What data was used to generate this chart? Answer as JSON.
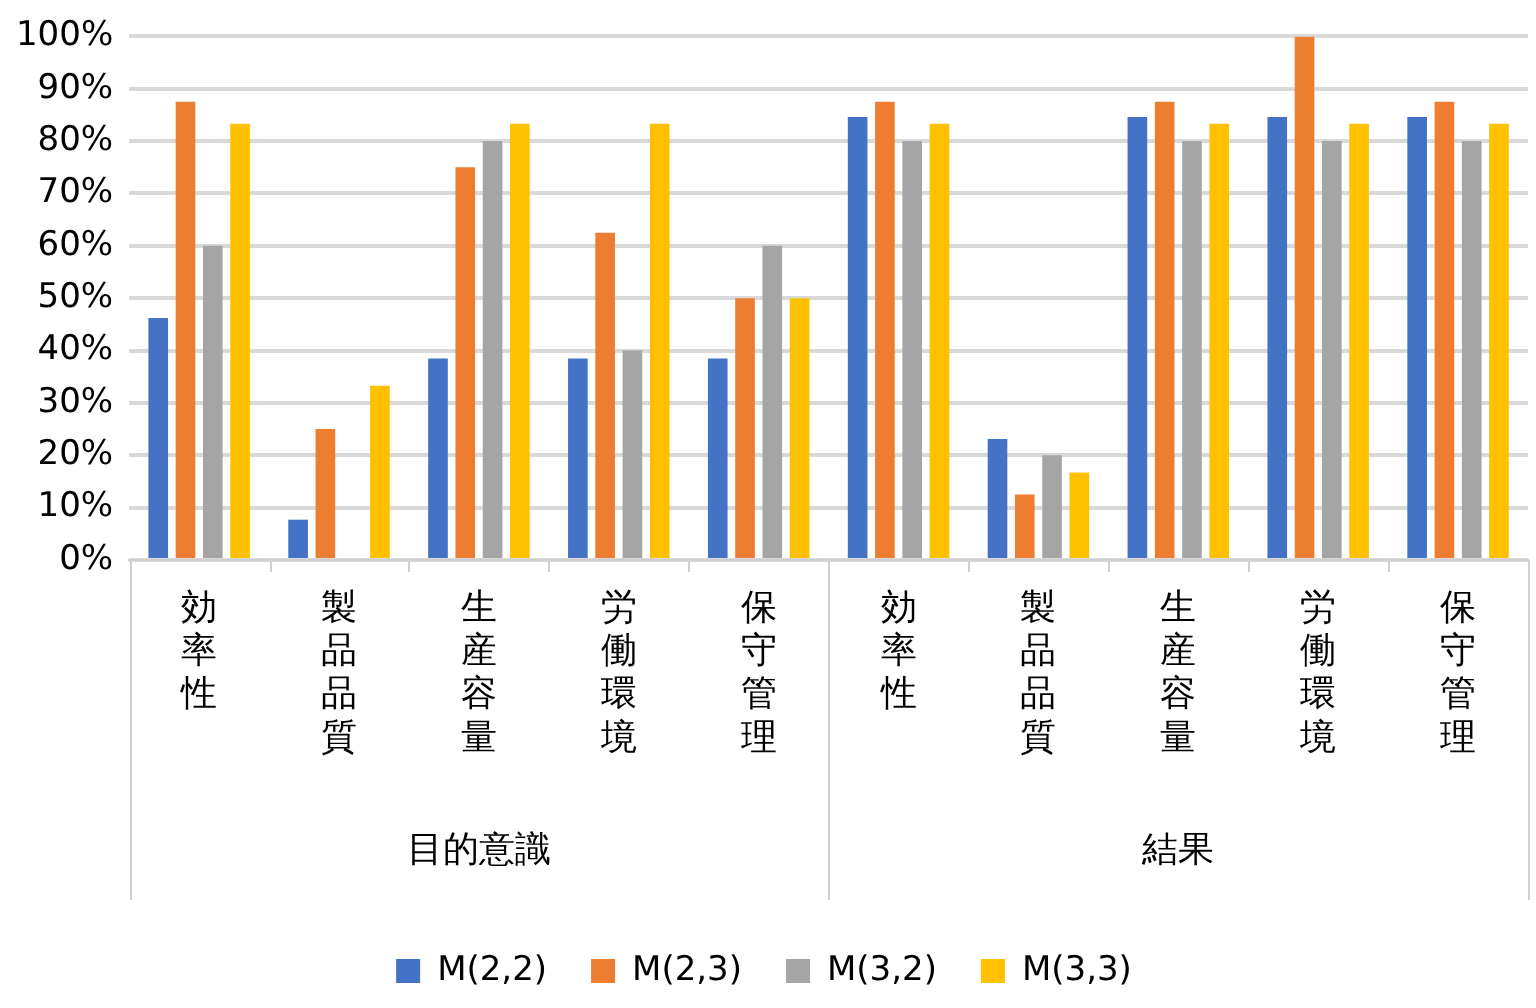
{
  "chart_data": {
    "type": "bar",
    "categories": [
      "効率性",
      "製品品質",
      "生産容量",
      "労働環境",
      "保守管理",
      "効率性",
      "製品品質",
      "生産容量",
      "労働環境",
      "保守管理"
    ],
    "series": [
      {
        "name": "M(2,2)",
        "color": "#4472c4",
        "values": [
          46.2,
          7.7,
          38.5,
          38.5,
          38.5,
          84.6,
          23.1,
          84.6,
          84.6,
          84.6
        ]
      },
      {
        "name": "M(2,3)",
        "color": "#ed7d31",
        "values": [
          87.5,
          25,
          75,
          62.5,
          50,
          87.5,
          12.5,
          87.5,
          100,
          87.5
        ]
      },
      {
        "name": "M(3,2)",
        "color": "#a5a5a5",
        "values": [
          60,
          0,
          80,
          40,
          60,
          80,
          20,
          80,
          80,
          80
        ]
      },
      {
        "name": "M(3,3)",
        "color": "#ffc000",
        "values": [
          83.3,
          33.3,
          83.3,
          83.3,
          50,
          83.3,
          16.7,
          83.3,
          83.3,
          83.3
        ]
      }
    ],
    "ylim": [
      0,
      100
    ],
    "yticks": [
      {
        "value": 0,
        "label": "0%"
      },
      {
        "value": 10,
        "label": "10%"
      },
      {
        "value": 20,
        "label": "20%"
      },
      {
        "value": 30,
        "label": "30%"
      },
      {
        "value": 40,
        "label": "40%"
      },
      {
        "value": 50,
        "label": "50%"
      },
      {
        "value": 60,
        "label": "60%"
      },
      {
        "value": 70,
        "label": "70%"
      },
      {
        "value": 80,
        "label": "80%"
      },
      {
        "value": 90,
        "label": "90%"
      },
      {
        "value": 100,
        "label": "100%"
      }
    ],
    "annotations": [
      "目的意識",
      "結果"
    ],
    "grid": "y",
    "legend": "bottom"
  }
}
